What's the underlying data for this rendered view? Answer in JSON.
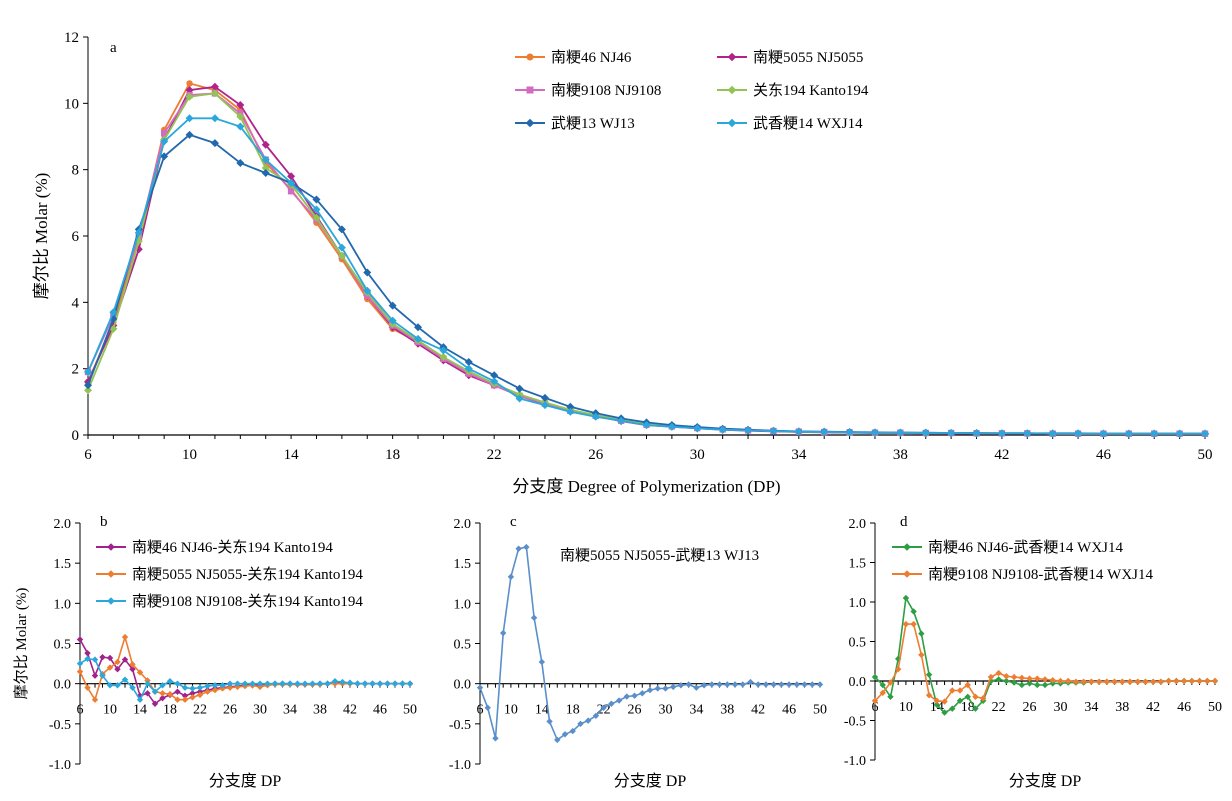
{
  "colors": {
    "NJ46": "#ED7D31",
    "NJ5055": "#B0238A",
    "NJ9108": "#D36BC2",
    "Kanto194": "#92C353",
    "WJ13": "#2268AD",
    "WXJ14": "#2BA7DB",
    "b_s1": "#A1228C",
    "b_s2": "#ED7D31",
    "b_s3": "#2BA7DB",
    "c_s1": "#5B8FC9",
    "d_s1": "#2E9E44",
    "d_s2": "#ED7D31"
  },
  "chart_data": [
    {
      "id": "a",
      "type": "line",
      "panel_label": "a",
      "xlabel": "分支度 Degree of Polymerization (DP)",
      "ylabel": "摩尔比 Molar (%)",
      "ylim": [
        0,
        12
      ],
      "xlim": [
        6,
        50
      ],
      "yticks": [
        "0",
        "2",
        "4",
        "6",
        "8",
        "10",
        "12"
      ],
      "xticks": [
        "6",
        "10",
        "14",
        "18",
        "22",
        "26",
        "30",
        "34",
        "38",
        "42",
        "46",
        "50"
      ],
      "legend_position": "top-right",
      "x_start": 6,
      "series": [
        {
          "name": "南粳46 NJ46",
          "color_key": "NJ46",
          "marker": "circle",
          "values": [
            1.6,
            3.4,
            5.9,
            9.2,
            10.6,
            10.4,
            9.8,
            8.2,
            7.4,
            6.4,
            5.3,
            4.1,
            3.2,
            2.8,
            2.3,
            1.85,
            1.5,
            1.2,
            0.97,
            0.75,
            0.6,
            0.45,
            0.33,
            0.27,
            0.22,
            0.18,
            0.15,
            0.12,
            0.1,
            0.09,
            0.08,
            0.07,
            0.07,
            0.06,
            0.06,
            0.05,
            0.05,
            0.05,
            0.04,
            0.04,
            0.04,
            0.04,
            0.04,
            0.04,
            0.04
          ]
        },
        {
          "name": "南粳5055 NJ5055",
          "color_key": "NJ5055",
          "marker": "diamond",
          "values": [
            1.6,
            3.3,
            5.6,
            8.9,
            10.4,
            10.5,
            9.95,
            8.75,
            7.8,
            6.6,
            5.4,
            4.2,
            3.25,
            2.75,
            2.25,
            1.8,
            1.5,
            1.18,
            0.93,
            0.72,
            0.57,
            0.42,
            0.3,
            0.25,
            0.2,
            0.16,
            0.13,
            0.11,
            0.09,
            0.08,
            0.07,
            0.06,
            0.06,
            0.05,
            0.05,
            0.04,
            0.04,
            0.04,
            0.04,
            0.03,
            0.03,
            0.03,
            0.03,
            0.03,
            0.03
          ]
        },
        {
          "name": "南粳9108 NJ9108",
          "color_key": "NJ9108",
          "marker": "square",
          "values": [
            1.9,
            3.6,
            6.0,
            9.1,
            10.25,
            10.3,
            9.7,
            8.3,
            7.35,
            6.5,
            5.4,
            4.2,
            3.3,
            2.8,
            2.3,
            1.85,
            1.5,
            1.18,
            0.95,
            0.73,
            0.58,
            0.43,
            0.31,
            0.26,
            0.21,
            0.17,
            0.14,
            0.12,
            0.1,
            0.09,
            0.08,
            0.07,
            0.07,
            0.06,
            0.06,
            0.05,
            0.05,
            0.05,
            0.04,
            0.04,
            0.04,
            0.04,
            0.04,
            0.04,
            0.04
          ]
        },
        {
          "name": "关东194 Kanto194",
          "color_key": "Kanto194",
          "marker": "diamond",
          "values": [
            1.35,
            3.2,
            5.85,
            8.9,
            10.2,
            10.3,
            9.6,
            8.05,
            7.55,
            6.55,
            5.4,
            4.3,
            3.35,
            2.85,
            2.35,
            1.92,
            1.55,
            1.22,
            0.98,
            0.76,
            0.6,
            0.45,
            0.33,
            0.27,
            0.22,
            0.18,
            0.15,
            0.12,
            0.1,
            0.09,
            0.08,
            0.07,
            0.07,
            0.06,
            0.06,
            0.05,
            0.05,
            0.05,
            0.04,
            0.04,
            0.04,
            0.04,
            0.04,
            0.04,
            0.04
          ]
        },
        {
          "name": "武粳13 WJ13",
          "color_key": "WJ13",
          "marker": "diamond",
          "values": [
            1.5,
            3.5,
            6.2,
            8.4,
            9.05,
            8.8,
            8.2,
            7.9,
            7.6,
            7.1,
            6.2,
            4.9,
            3.9,
            3.25,
            2.65,
            2.2,
            1.8,
            1.4,
            1.12,
            0.85,
            0.66,
            0.5,
            0.38,
            0.3,
            0.24,
            0.19,
            0.16,
            0.13,
            0.11,
            0.1,
            0.09,
            0.08,
            0.07,
            0.07,
            0.06,
            0.06,
            0.05,
            0.05,
            0.05,
            0.05,
            0.04,
            0.04,
            0.04,
            0.04,
            0.04
          ]
        },
        {
          "name": "武香粳14 WXJ14",
          "color_key": "WXJ14",
          "marker": "diamond",
          "values": [
            1.9,
            3.7,
            6.1,
            8.85,
            9.55,
            9.55,
            9.3,
            8.3,
            7.6,
            6.8,
            5.65,
            4.35,
            3.45,
            2.9,
            2.55,
            2.0,
            1.62,
            1.1,
            0.9,
            0.7,
            0.55,
            0.43,
            0.3,
            0.25,
            0.2,
            0.16,
            0.14,
            0.12,
            0.1,
            0.09,
            0.08,
            0.07,
            0.07,
            0.06,
            0.06,
            0.05,
            0.05,
            0.05,
            0.04,
            0.04,
            0.04,
            0.04,
            0.04,
            0.04,
            0.04
          ]
        }
      ]
    },
    {
      "id": "b",
      "type": "line",
      "panel_label": "b",
      "xlabel": "分支度 DP",
      "ylabel": "摩尔比 Molar (%)",
      "ylim": [
        -1.0,
        2.0
      ],
      "xlim": [
        6,
        50
      ],
      "yticks": [
        "-1.0",
        "-0.5",
        "0.0",
        "0.5",
        "1.0",
        "1.5",
        "2.0"
      ],
      "xticks": [
        "6",
        "10",
        "14",
        "18",
        "22",
        "26",
        "30",
        "34",
        "38",
        "42",
        "46",
        "50"
      ],
      "legend_position": "top-left",
      "x_start": 6,
      "series": [
        {
          "name": "南粳46 NJ46-关东194 Kanto194",
          "color_key": "b_s1",
          "values": [
            0.55,
            0.38,
            0.1,
            0.33,
            0.32,
            0.18,
            0.3,
            0.18,
            -0.15,
            -0.12,
            -0.25,
            -0.18,
            -0.14,
            -0.1,
            -0.15,
            -0.12,
            -0.1,
            -0.08,
            -0.06,
            -0.05,
            -0.04,
            -0.03,
            -0.02,
            -0.02,
            -0.01,
            -0.01,
            0.0,
            0.0,
            0.0,
            -0.01,
            -0.01,
            -0.01,
            0.0,
            0.0,
            0.02,
            0.01,
            0.01,
            0.0,
            0.0,
            0.0,
            0.0,
            0.0,
            0.0,
            0.0,
            0.0
          ]
        },
        {
          "name": "南粳5055 NJ5055-关东194 Kanto194",
          "color_key": "b_s2",
          "values": [
            0.15,
            -0.05,
            -0.2,
            0.12,
            0.2,
            0.27,
            0.58,
            0.24,
            0.14,
            0.04,
            -0.1,
            -0.12,
            -0.13,
            -0.2,
            -0.2,
            -0.17,
            -0.14,
            -0.1,
            -0.08,
            -0.06,
            -0.05,
            -0.04,
            -0.03,
            -0.02,
            -0.04,
            -0.02,
            -0.01,
            -0.01,
            -0.01,
            -0.01,
            -0.01,
            -0.01,
            -0.01,
            0.0,
            0.0,
            0.0,
            0.0,
            0.0,
            0.0,
            0.0,
            0.0,
            0.0,
            0.0,
            0.0,
            0.0
          ]
        },
        {
          "name": "南粳9108 NJ9108-关东194 Kanto194",
          "color_key": "b_s3",
          "values": [
            0.25,
            0.31,
            0.3,
            0.1,
            -0.02,
            -0.02,
            0.05,
            -0.05,
            -0.2,
            0.0,
            -0.1,
            -0.02,
            0.03,
            0.0,
            -0.05,
            -0.06,
            -0.05,
            -0.03,
            -0.02,
            -0.02,
            0.0,
            0.0,
            0.0,
            0.0,
            0.0,
            0.0,
            0.0,
            0.0,
            0.0,
            0.0,
            0.0,
            0.0,
            0.0,
            0.0,
            0.03,
            0.02,
            0.01,
            0.0,
            0.0,
            0.0,
            0.0,
            0.0,
            0.0,
            0.0,
            0.0
          ]
        }
      ]
    },
    {
      "id": "c",
      "type": "line",
      "panel_label": "c",
      "xlabel": "分支度 DP",
      "ylabel": "",
      "ylim": [
        -1.0,
        2.0
      ],
      "xlim": [
        6,
        50
      ],
      "yticks": [
        "-1.0",
        "-0.5",
        "0.0",
        "0.5",
        "1.0",
        "1.5",
        "2.0"
      ],
      "xticks": [
        "6",
        "10",
        "14",
        "18",
        "22",
        "26",
        "30",
        "34",
        "38",
        "42",
        "46",
        "50"
      ],
      "legend_position": "top-right",
      "x_start": 6,
      "series": [
        {
          "name": "南粳5055 NJ5055-武粳13 WJ13",
          "color_key": "c_s1",
          "values": [
            -0.05,
            -0.3,
            -0.68,
            0.63,
            1.33,
            1.68,
            1.7,
            0.82,
            0.27,
            -0.47,
            -0.7,
            -0.63,
            -0.59,
            -0.5,
            -0.46,
            -0.4,
            -0.3,
            -0.25,
            -0.21,
            -0.16,
            -0.15,
            -0.12,
            -0.08,
            -0.06,
            -0.06,
            -0.04,
            -0.02,
            -0.01,
            -0.05,
            -0.02,
            -0.01,
            -0.01,
            -0.01,
            -0.01,
            -0.01,
            0.02,
            -0.01,
            -0.01,
            -0.01,
            -0.01,
            -0.01,
            -0.01,
            -0.01,
            -0.01,
            -0.01
          ]
        }
      ]
    },
    {
      "id": "d",
      "type": "line",
      "panel_label": "d",
      "xlabel": "分支度 DP",
      "ylabel": "",
      "ylim": [
        -1.0,
        2.0
      ],
      "xlim": [
        6,
        50
      ],
      "yticks": [
        "-1.0",
        "-0.5",
        "0.0",
        "0.5",
        "1.0",
        "1.5",
        "2.0"
      ],
      "xticks": [
        "6",
        "10",
        "14",
        "18",
        "22",
        "26",
        "30",
        "34",
        "38",
        "42",
        "46",
        "50"
      ],
      "legend_position": "top-left",
      "x_start": 6,
      "series": [
        {
          "name": "南粳46 NJ46-武香粳14 WXJ14",
          "color_key": "d_s1",
          "values": [
            0.05,
            -0.05,
            -0.2,
            0.28,
            1.05,
            0.88,
            0.6,
            0.08,
            -0.3,
            -0.4,
            -0.35,
            -0.25,
            -0.2,
            -0.35,
            -0.25,
            0.0,
            0.02,
            0.0,
            -0.02,
            -0.05,
            -0.03,
            -0.05,
            -0.05,
            -0.03,
            -0.03,
            -0.02,
            -0.02,
            -0.02,
            -0.01,
            -0.01,
            -0.01,
            -0.01,
            -0.01,
            -0.01,
            -0.01,
            -0.01,
            -0.01,
            -0.01,
            0.0,
            0.0,
            0.0,
            0.0,
            0.0,
            0.0,
            0.0
          ]
        },
        {
          "name": "南粳9108 NJ9108-武香粳14 WXJ14",
          "color_key": "d_s2",
          "values": [
            -0.25,
            -0.15,
            -0.02,
            0.15,
            0.72,
            0.72,
            0.33,
            -0.18,
            -0.25,
            -0.26,
            -0.12,
            -0.12,
            -0.05,
            -0.2,
            -0.22,
            0.05,
            0.1,
            0.06,
            0.05,
            0.04,
            0.03,
            0.03,
            0.02,
            0.01,
            0.0,
            0.0,
            -0.01,
            -0.01,
            -0.01,
            -0.01,
            -0.01,
            -0.01,
            -0.01,
            -0.01,
            -0.01,
            -0.01,
            -0.01,
            -0.01,
            0.0,
            0.0,
            0.0,
            0.0,
            0.0,
            0.0,
            0.0
          ]
        }
      ]
    }
  ]
}
